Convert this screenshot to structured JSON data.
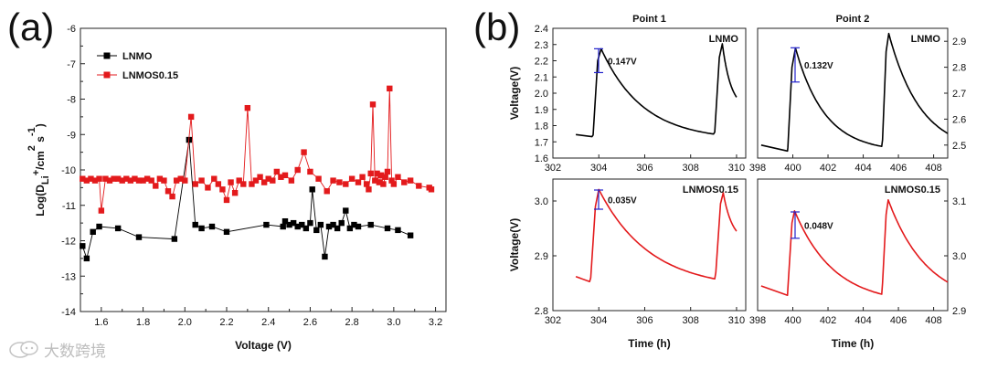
{
  "panel_labels": {
    "a": "(a)",
    "b": "(b)"
  },
  "watermark": {
    "text": "大数跨境",
    "icon": "chat-bubble-icon"
  },
  "colors": {
    "lnmo": "#000000",
    "lnmos": "#e31a1c",
    "axis": "#222222",
    "bracket": "#2222cc"
  },
  "chart_data": [
    {
      "id": "a",
      "type": "scatter",
      "xlabel": "Voltage (V)",
      "ylabel_parts": [
        "Log(D",
        "Li",
        "+",
        "/cm",
        "2",
        "s",
        "-1",
        ")"
      ],
      "xlim": [
        1.5,
        3.25
      ],
      "ylim": [
        -14,
        -6
      ],
      "xticks": [
        1.6,
        1.8,
        2.0,
        2.2,
        2.4,
        2.6,
        2.8,
        3.0,
        3.2
      ],
      "xtick_labels": [
        "1.6",
        "1.8",
        "2.0",
        "2.2",
        "2.4",
        "2.6",
        "2.8",
        "3.0",
        "3.2"
      ],
      "yticks": [
        -14,
        -13,
        -12,
        -11,
        -10,
        -9,
        -8,
        -7,
        -6
      ],
      "ytick_labels": [
        "-14",
        "-13",
        "-12",
        "-11",
        "-10",
        "-9",
        "-8",
        "-7",
        "-6"
      ],
      "legend": [
        {
          "name": "LNMO",
          "color": "#000000"
        },
        {
          "name": "LNMOS0.15",
          "color": "#e31a1c"
        }
      ],
      "series": [
        {
          "name": "LNMO",
          "color": "#000000",
          "x": [
            1.51,
            1.53,
            1.56,
            1.59,
            1.68,
            1.78,
            1.95,
            2.02,
            2.05,
            2.08,
            2.13,
            2.2,
            2.39,
            2.47,
            2.48,
            2.5,
            2.52,
            2.54,
            2.56,
            2.58,
            2.6,
            2.61,
            2.63,
            2.65,
            2.67,
            2.69,
            2.71,
            2.73,
            2.75,
            2.77,
            2.79,
            2.81,
            2.83,
            2.89,
            2.97,
            3.02,
            3.08
          ],
          "y": [
            -12.15,
            -12.5,
            -11.75,
            -11.6,
            -11.65,
            -11.9,
            -11.95,
            -9.15,
            -11.55,
            -11.65,
            -11.6,
            -11.75,
            -11.55,
            -11.6,
            -11.45,
            -11.55,
            -11.5,
            -11.6,
            -11.55,
            -11.65,
            -11.5,
            -10.55,
            -11.7,
            -11.55,
            -12.45,
            -11.6,
            -11.55,
            -11.65,
            -11.5,
            -11.15,
            -11.65,
            -11.55,
            -11.6,
            -11.55,
            -11.65,
            -11.7,
            -11.85
          ]
        },
        {
          "name": "LNMOS0.15",
          "color": "#e31a1c",
          "x": [
            1.51,
            1.53,
            1.55,
            1.57,
            1.59,
            1.6,
            1.62,
            1.64,
            1.66,
            1.68,
            1.7,
            1.72,
            1.74,
            1.76,
            1.78,
            1.8,
            1.82,
            1.84,
            1.86,
            1.88,
            1.9,
            1.92,
            1.94,
            1.96,
            1.98,
            2.0,
            2.03,
            2.05,
            2.08,
            2.11,
            2.14,
            2.16,
            2.18,
            2.2,
            2.22,
            2.24,
            2.26,
            2.28,
            2.3,
            2.32,
            2.34,
            2.36,
            2.38,
            2.4,
            2.42,
            2.44,
            2.46,
            2.48,
            2.51,
            2.54,
            2.57,
            2.6,
            2.64,
            2.68,
            2.71,
            2.74,
            2.77,
            2.8,
            2.83,
            2.85,
            2.87,
            2.88,
            2.89,
            2.9,
            2.91,
            2.92,
            2.93,
            2.94,
            2.95,
            2.96,
            2.97,
            2.98,
            2.99,
            3.0,
            3.02,
            3.05,
            3.08,
            3.12,
            3.17,
            3.18
          ],
          "y": [
            -10.25,
            -10.3,
            -10.25,
            -10.3,
            -10.25,
            -11.15,
            -10.25,
            -10.3,
            -10.25,
            -10.25,
            -10.3,
            -10.25,
            -10.3,
            -10.25,
            -10.3,
            -10.3,
            -10.25,
            -10.3,
            -10.45,
            -10.25,
            -10.3,
            -10.6,
            -10.75,
            -10.3,
            -10.25,
            -10.3,
            -8.5,
            -10.4,
            -10.3,
            -10.5,
            -10.25,
            -10.4,
            -10.55,
            -10.85,
            -10.35,
            -10.65,
            -10.3,
            -10.4,
            -8.25,
            -10.4,
            -10.3,
            -10.2,
            -10.35,
            -10.25,
            -10.3,
            -10.05,
            -10.2,
            -10.15,
            -10.3,
            -10.0,
            -9.5,
            -10.05,
            -10.25,
            -10.6,
            -10.3,
            -10.35,
            -10.4,
            -10.25,
            -10.35,
            -10.2,
            -10.4,
            -10.55,
            -10.1,
            -8.15,
            -10.3,
            -10.1,
            -10.35,
            -10.15,
            -10.4,
            -10.2,
            -10.05,
            -7.7,
            -10.3,
            -10.4,
            -10.2,
            -10.35,
            -10.3,
            -10.45,
            -10.5,
            -10.55
          ]
        }
      ]
    },
    {
      "id": "b1",
      "type": "line",
      "title": "Point 1",
      "series_name": "LNMO",
      "xlim": [
        302,
        310.4
      ],
      "ylim": [
        1.6,
        2.4
      ],
      "xticks": [
        302,
        304,
        306,
        308,
        310
      ],
      "xtick_labels": [
        "302",
        "304",
        "306",
        "308",
        "310"
      ],
      "yticks": [
        1.6,
        1.7,
        1.8,
        1.9,
        2.0,
        2.1,
        2.2,
        2.3,
        2.4
      ],
      "ytick_labels": [
        "1.6",
        "1.7",
        "1.8",
        "1.9",
        "2.0",
        "2.1",
        "2.2",
        "2.3",
        "2.4"
      ],
      "ylabel": "Voltage(V)",
      "xlabel": "",
      "label": "LNMO",
      "annotation": "0.147V",
      "bracket": [
        2.127,
        2.274
      ],
      "relax_start": 303.0,
      "pulses": [
        303.75,
        309.0
      ],
      "relax_end": 310.0,
      "v_low": 1.73,
      "v_min0": 1.74,
      "v_peak": 2.275,
      "v_mid": 1.96,
      "v_high_final": 1.745,
      "color": "#000000"
    },
    {
      "id": "b2",
      "type": "line",
      "title": "Point 2",
      "series_name": "LNMO",
      "xlim": [
        398,
        408.8
      ],
      "ylim": [
        2.45,
        2.95
      ],
      "xticks": [
        398,
        400,
        402,
        404,
        406,
        408
      ],
      "xtick_labels": [
        "398",
        "400",
        "402",
        "404",
        "406",
        "408"
      ],
      "yticks": [
        2.5,
        2.6,
        2.7,
        2.8,
        2.9
      ],
      "ytick_labels": [
        "2.5",
        "2.6",
        "2.7",
        "2.8",
        "2.9"
      ],
      "ylabel": "",
      "xlabel": "",
      "label": "LNMO",
      "annotation": "0.132V",
      "bracket": [
        2.743,
        2.875
      ],
      "color": "#000000"
    },
    {
      "id": "b3",
      "type": "line",
      "title": "",
      "series_name": "LNMOS0.15",
      "xlim": [
        302,
        310.4
      ],
      "ylim": [
        2.8,
        3.04
      ],
      "xticks": [
        302,
        304,
        306,
        308,
        310
      ],
      "xtick_labels": [
        "302",
        "304",
        "306",
        "308",
        "310"
      ],
      "yticks": [
        2.8,
        2.9,
        3.0
      ],
      "ytick_labels": [
        "2.8",
        "2.9",
        "3.0"
      ],
      "ylabel": "Voltage(V)",
      "xlabel": "Time (h)",
      "label": "LNMOS0.15",
      "annotation": "0.035V",
      "bracket": [
        2.985,
        3.02
      ],
      "color": "#e31a1c"
    },
    {
      "id": "b4",
      "type": "line",
      "title": "",
      "series_name": "LNMOS0.15",
      "xlim": [
        398,
        408.8
      ],
      "ylim": [
        2.9,
        3.14
      ],
      "xticks": [
        398,
        400,
        402,
        404,
        406,
        408
      ],
      "xtick_labels": [
        "398",
        "400",
        "402",
        "404",
        "406",
        "408"
      ],
      "yticks": [
        2.9,
        3.0,
        3.1
      ],
      "ytick_labels": [
        "2.9",
        "3.0",
        "3.1"
      ],
      "ylabel": "",
      "xlabel": "Time (h)",
      "label": "LNMOS0.15",
      "annotation": "0.048V",
      "bracket": [
        3.032,
        3.08
      ],
      "color": "#e31a1c"
    }
  ]
}
